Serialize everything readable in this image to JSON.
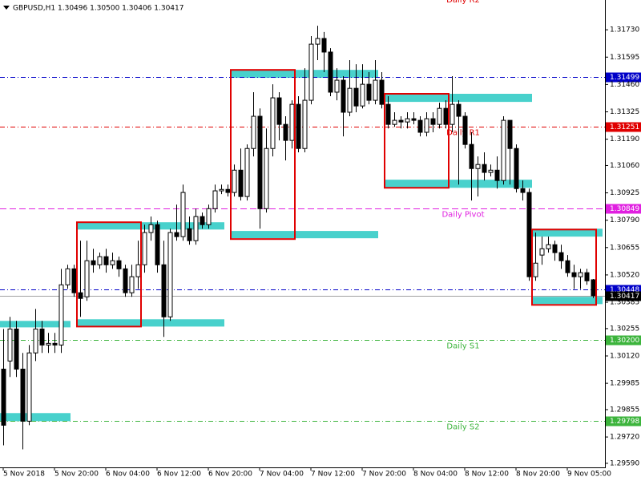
{
  "chart_data": {
    "type": "candlestick",
    "header": "GBPUSD,H1  1.30496 1.30500 1.30406 1.30417",
    "x_labels": [
      "5 Nov 2018",
      "5 Nov 20:00",
      "6 Nov 04:00",
      "6 Nov 12:00",
      "6 Nov 20:00",
      "7 Nov 04:00",
      "7 Nov 12:00",
      "7 Nov 20:00",
      "8 Nov 04:00",
      "8 Nov 12:00",
      "8 Nov 20:00",
      "9 Nov 05:00"
    ],
    "open": [
      1.30055,
      1.30095,
      1.30253,
      1.30055,
      1.29798,
      1.30135,
      1.30253,
      1.30174,
      1.30182,
      1.30174,
      1.30471,
      1.3055,
      1.30432,
      1.30412,
      1.3059,
      1.3057,
      1.3061,
      1.3057,
      1.3059,
      1.3055,
      1.30432,
      1.30511,
      1.3057,
      1.30729,
      1.30768,
      1.3057,
      1.30313,
      1.30729,
      1.30709,
      1.30748,
      1.30689,
      1.30808,
      1.30768,
      1.30847,
      1.30935,
      1.30942,
      1.30927,
      1.31037,
      1.30907,
      1.31144,
      1.31303,
      1.30847,
      1.31144,
      1.31394,
      1.31263,
      1.31184,
      1.31362,
      1.31144,
      1.31382,
      1.31659,
      1.31687,
      1.3162,
      1.31422,
      1.31481,
      1.31323,
      1.31441,
      1.31354,
      1.31461,
      1.31382,
      1.31481,
      1.31362,
      1.31263,
      1.31283,
      1.31275,
      1.31291,
      1.31283,
      1.31224,
      1.31291,
      1.31263,
      1.31342,
      1.31263,
      1.31362,
      1.31303,
      1.31164,
      1.31045,
      1.31065,
      1.31026,
      1.31037,
      1.30986,
      1.31283,
      1.31144,
      1.30946,
      1.30927,
      1.30511,
      1.30618,
      1.30649,
      1.30669,
      1.3063,
      1.3059,
      1.30531,
      1.30511,
      1.30531,
      1.30496
    ],
    "high": [
      1.30253,
      1.30313,
      1.30293,
      1.30135,
      1.30174,
      1.30352,
      1.30293,
      1.30234,
      1.30234,
      1.3055,
      1.3057,
      1.3057,
      1.30689,
      1.30689,
      1.30649,
      1.3063,
      1.30649,
      1.3063,
      1.3061,
      1.3057,
      1.3057,
      1.30689,
      1.30768,
      1.30808,
      1.30788,
      1.30689,
      1.30748,
      1.30867,
      1.30966,
      1.30808,
      1.30847,
      1.30828,
      1.30867,
      1.30966,
      1.30966,
      1.30966,
      1.31065,
      1.31144,
      1.31164,
      1.31422,
      1.31342,
      1.31243,
      1.31461,
      1.31422,
      1.31303,
      1.31382,
      1.31402,
      1.3154,
      1.31699,
      1.3175,
      1.31719,
      1.31639,
      1.3154,
      1.31501,
      1.3158,
      1.3156,
      1.3156,
      1.31521,
      1.3158,
      1.31521,
      1.31402,
      1.31323,
      1.31303,
      1.31323,
      1.31323,
      1.31303,
      1.31323,
      1.31323,
      1.3137,
      1.31382,
      1.31501,
      1.31382,
      1.31323,
      1.31224,
      1.31105,
      1.31125,
      1.31065,
      1.31105,
      1.31303,
      1.31283,
      1.31164,
      1.30986,
      1.30946,
      1.30729,
      1.30709,
      1.30709,
      1.30689,
      1.30669,
      1.30618,
      1.3057,
      1.3055,
      1.3055,
      1.305
    ],
    "low": [
      1.29679,
      1.30016,
      1.30016,
      1.29659,
      1.29778,
      1.30095,
      1.30135,
      1.30135,
      1.30135,
      1.30135,
      1.30451,
      1.30412,
      1.30313,
      1.30392,
      1.30531,
      1.3055,
      1.30531,
      1.3055,
      1.30511,
      1.30412,
      1.30412,
      1.30451,
      1.30531,
      1.30689,
      1.30531,
      1.30214,
      1.30293,
      1.30689,
      1.30689,
      1.30669,
      1.30669,
      1.30748,
      1.30748,
      1.30828,
      1.30919,
      1.30907,
      1.30907,
      1.30887,
      1.30887,
      1.31105,
      1.30748,
      1.30828,
      1.31105,
      1.31184,
      1.31085,
      1.31144,
      1.31125,
      1.31125,
      1.31362,
      1.3158,
      1.31521,
      1.31402,
      1.31382,
      1.31204,
      1.31303,
      1.31323,
      1.31342,
      1.31362,
      1.31362,
      1.31342,
      1.31243,
      1.31251,
      1.31243,
      1.31243,
      1.31263,
      1.31204,
      1.31204,
      1.31224,
      1.31243,
      1.31243,
      1.31224,
      1.30966,
      1.31144,
      1.30887,
      1.30907,
      1.30986,
      1.31006,
      1.30946,
      1.30966,
      1.30966,
      1.30927,
      1.30887,
      1.30491,
      1.30491,
      1.3057,
      1.3063,
      1.3059,
      1.3055,
      1.30511,
      1.30451,
      1.30451,
      1.30471,
      1.30406
    ],
    "close": [
      1.29778,
      1.30253,
      1.30055,
      1.29798,
      1.30135,
      1.30253,
      1.30174,
      1.30182,
      1.30174,
      1.30471,
      1.3055,
      1.30432,
      1.30404,
      1.3059,
      1.3057,
      1.3061,
      1.3057,
      1.3059,
      1.3055,
      1.30432,
      1.30511,
      1.3057,
      1.30729,
      1.30768,
      1.3057,
      1.30313,
      1.30729,
      1.30709,
      1.30927,
      1.30689,
      1.30808,
      1.30768,
      1.30847,
      1.30935,
      1.30942,
      1.30927,
      1.31037,
      1.30907,
      1.31144,
      1.31303,
      1.30847,
      1.31144,
      1.31394,
      1.31263,
      1.31184,
      1.31362,
      1.31144,
      1.31382,
      1.31659,
      1.31687,
      1.3162,
      1.31422,
      1.31481,
      1.31323,
      1.31441,
      1.31354,
      1.31461,
      1.31382,
      1.31481,
      1.31362,
      1.31263,
      1.31283,
      1.31275,
      1.31291,
      1.31283,
      1.31224,
      1.31291,
      1.31263,
      1.31342,
      1.31263,
      1.31362,
      1.31303,
      1.31164,
      1.31045,
      1.31065,
      1.31026,
      1.31037,
      1.30986,
      1.31283,
      1.31144,
      1.30946,
      1.30927,
      1.30511,
      1.30578,
      1.30649,
      1.30669,
      1.3063,
      1.3059,
      1.30531,
      1.30511,
      1.30531,
      1.30491,
      1.30417
    ],
    "ylim": [
      1.2957,
      1.31877
    ],
    "yticks": [
      {
        "value": 1.3173,
        "label": "1.31730"
      },
      1.31595,
      {
        "value": 1.3146,
        "label": "1.31460"
      },
      1.31325,
      {
        "value": 1.3119,
        "label": "1.31190"
      },
      {
        "value": 1.3106,
        "label": "1.31060"
      },
      1.30925,
      {
        "value": 1.3079,
        "label": "1.30790"
      },
      1.30655,
      {
        "value": 1.3052,
        "label": "1.30520"
      },
      1.30385,
      1.30255,
      {
        "value": 1.3012,
        "label": "1.30120"
      },
      1.29985,
      1.29855,
      {
        "value": 1.2972,
        "label": "1.29720"
      },
      {
        "value": 1.2959,
        "label": "1.29590"
      }
    ],
    "levels": [
      {
        "value": 1.31499,
        "color": "#0000c8",
        "style": "dashdot"
      },
      {
        "value": 1.31251,
        "color": "#e00000",
        "style": "dashdot",
        "name": "Daily R1"
      },
      {
        "value": 1.30849,
        "color": "#e020e0",
        "style": "dash",
        "name": "Daily Pivot"
      },
      {
        "value": 1.30448,
        "color": "#0000c8",
        "style": "dashdot"
      },
      {
        "value": 1.30417,
        "color": "#000000",
        "style": "solid"
      },
      {
        "value": {
          "value": 1.302,
          "label": "1.30200"
        },
        "color": "#3cb43c",
        "style": "dashdot",
        "name": "Daily S1"
      },
      {
        "value": 1.29798,
        "color": "#3cb43c",
        "style": "dashdot",
        "name": "Daily S2"
      }
    ],
    "offscreen_label": {
      "name": "Daily R2",
      "color": "#e00000"
    },
    "zone_color": "#48d1cc",
    "box_color": "#e00000",
    "zones": [
      {
        "start": 0,
        "end": 10,
        "high": 1.30293,
        "low": 1.30261
      },
      {
        "start": 0,
        "end": 10,
        "high": 1.29838,
        "low": 1.29798
      },
      {
        "start": 12,
        "end": 34,
        "high": 1.3078,
        "low": 1.30744
      },
      {
        "start": 12,
        "end": 34,
        "high": 1.30301,
        "low": 1.30265
      },
      {
        "start": 36,
        "end": 58,
        "high": 1.31532,
        "low": 1.31493
      },
      {
        "start": 36,
        "end": 58,
        "high": 1.30737,
        "low": 1.30701
      },
      {
        "start": 60,
        "end": 82,
        "high": 1.31414,
        "low": 1.31374
      },
      {
        "start": 60,
        "end": 82,
        "high": 1.3099,
        "low": 1.3095
      },
      {
        "start": 83,
        "end": 93,
        "high": 1.30748,
        "low": 1.30709
      },
      {
        "start": 83,
        "end": 93,
        "high": 1.30412,
        "low": 1.30376
      }
    ],
    "boxes": [
      {
        "start": 12,
        "end": 21,
        "high": 1.3078,
        "low": 1.30265
      },
      {
        "start": 36,
        "end": 45,
        "high": 1.31532,
        "low": 1.30697
      },
      {
        "start": 60,
        "end": 69,
        "high": 1.31414,
        "low": 1.3095
      },
      {
        "start": 83,
        "end": 92,
        "high": 1.30744,
        "low": 1.30372
      }
    ]
  }
}
